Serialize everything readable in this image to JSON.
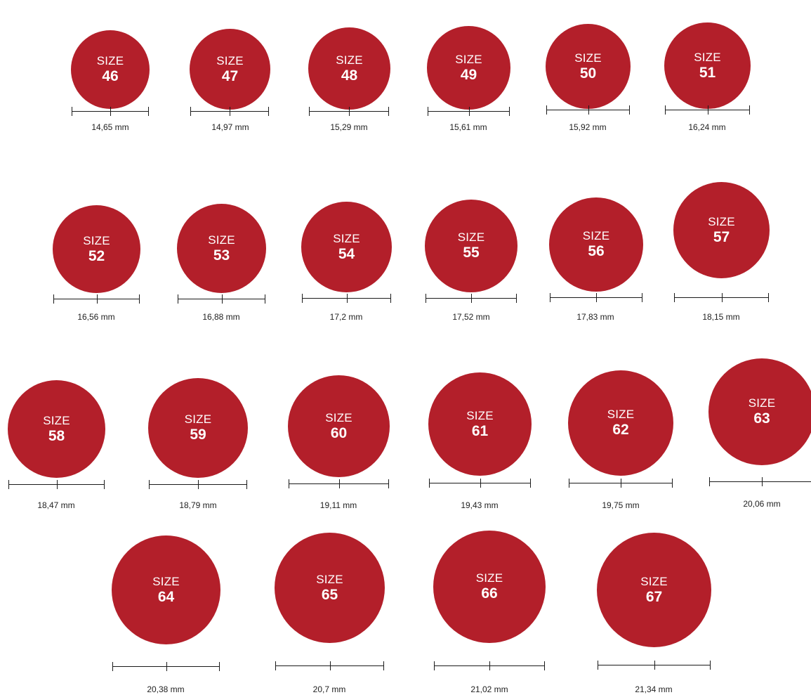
{
  "accent_color": "#b31f2a",
  "size_label": "SIZE",
  "rows": [
    [
      {
        "size": "46",
        "mm": "14,65 mm"
      },
      {
        "size": "47",
        "mm": "14,97 mm"
      },
      {
        "size": "48",
        "mm": "15,29 mm"
      },
      {
        "size": "49",
        "mm": "15,61 mm"
      },
      {
        "size": "50",
        "mm": "15,92 mm"
      },
      {
        "size": "51",
        "mm": "16,24 mm"
      }
    ],
    [
      {
        "size": "52",
        "mm": "16,56 mm"
      },
      {
        "size": "53",
        "mm": "16,88 mm"
      },
      {
        "size": "54",
        "mm": "17,2 mm"
      },
      {
        "size": "55",
        "mm": "17,52 mm"
      },
      {
        "size": "56",
        "mm": "17,83 mm"
      },
      {
        "size": "57",
        "mm": "18,15 mm"
      }
    ],
    [
      {
        "size": "58",
        "mm": "18,47 mm"
      },
      {
        "size": "59",
        "mm": "18,79 mm"
      },
      {
        "size": "60",
        "mm": "19,11 mm"
      },
      {
        "size": "61",
        "mm": "19,43 mm"
      },
      {
        "size": "62",
        "mm": "19,75 mm"
      },
      {
        "size": "63",
        "mm": "20,06 mm"
      }
    ],
    [
      {
        "size": "64",
        "mm": "20,38 mm"
      },
      {
        "size": "65",
        "mm": "20,7 mm"
      },
      {
        "size": "66",
        "mm": "21,02 mm"
      },
      {
        "size": "67",
        "mm": "21,34 mm"
      }
    ]
  ]
}
